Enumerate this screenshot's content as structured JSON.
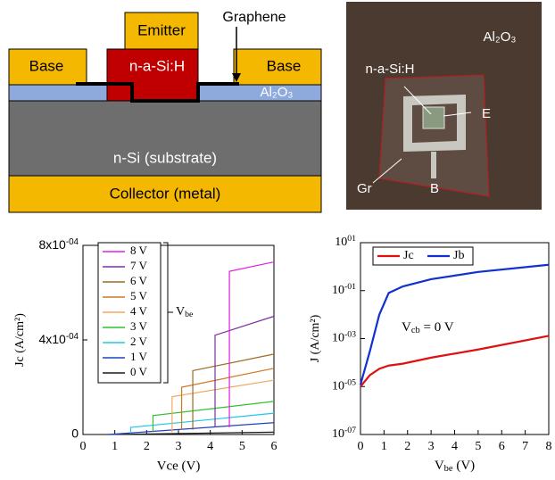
{
  "diagram": {
    "emitter": "Emitter",
    "graphene": "Graphene",
    "base_left": "Base",
    "emitter_material": "n-a-Si:H",
    "base_right": "Base",
    "oxide": "Al₂O₃",
    "substrate": "n-Si (substrate)",
    "collector": "Collector (metal)"
  },
  "photo": {
    "oxide": "Al₂O₃",
    "emitter_material": "n-a-Si:H",
    "emitter": "E",
    "graphene": "Gr",
    "base": "B"
  },
  "chart_data": [
    {
      "type": "line",
      "y_label": "Jc (A/cm²)",
      "x_label": "Vce (V)",
      "xlim": [
        0,
        6
      ],
      "xticks": [
        0,
        1,
        2,
        3,
        4,
        5,
        6
      ],
      "ylim": [
        0,
        0.0008
      ],
      "yticks": [
        0,
        {
          "value": 0.0004,
          "label": "4x10",
          "sup": "-04"
        },
        {
          "value": 0.0008,
          "label": "8x10",
          "sup": "-04"
        }
      ],
      "annotation": {
        "text": "V",
        "sub": "be"
      },
      "series": [
        {
          "name": "0 V",
          "color": "#1a1a1a",
          "x": [
            0.8,
            6
          ],
          "values": [
            0,
            1e-05
          ]
        },
        {
          "name": "1 V",
          "color": "#2040c0",
          "x": [
            0.8,
            6
          ],
          "values": [
            0,
            5e-05
          ]
        },
        {
          "name": "2 V",
          "color": "#20c8e8",
          "x": [
            1.5,
            1.5,
            6
          ],
          "values": [
            5e-06,
            3e-05,
            9e-05
          ]
        },
        {
          "name": "3 V",
          "color": "#30c030",
          "x": [
            2.2,
            2.2,
            6
          ],
          "values": [
            1e-05,
            8e-05,
            0.00014
          ]
        },
        {
          "name": "4 V",
          "color": "#f0a860",
          "x": [
            2.8,
            2.8,
            6
          ],
          "values": [
            1e-05,
            0.00016,
            0.00023
          ]
        },
        {
          "name": "5 V",
          "color": "#d07820",
          "x": [
            3.1,
            3.1,
            6
          ],
          "values": [
            2e-05,
            0.0002,
            0.00028
          ]
        },
        {
          "name": "6 V",
          "color": "#a06a20",
          "x": [
            3.45,
            3.45,
            6
          ],
          "values": [
            2e-05,
            0.00027,
            0.00034
          ]
        },
        {
          "name": "7 V",
          "color": "#7a30a0",
          "x": [
            4.15,
            4.15,
            6
          ],
          "values": [
            3e-05,
            0.00042,
            0.0005
          ]
        },
        {
          "name": "8 V",
          "color": "#e020e0",
          "x": [
            4.6,
            4.6,
            6
          ],
          "values": [
            3e-05,
            0.00069,
            0.00073
          ]
        }
      ]
    },
    {
      "type": "line",
      "log_y": true,
      "y_label": "J (A/cm²)",
      "x_label": {
        "text": "V",
        "sub": "be",
        "rest": " (V)"
      },
      "xlim": [
        0,
        8
      ],
      "xticks": [
        0,
        1,
        2,
        3,
        4,
        5,
        6,
        7,
        8
      ],
      "ylim": [
        1e-07,
        10
      ],
      "yticks": [
        {
          "value": 1e-07,
          "label": "10",
          "sup": "-07"
        },
        {
          "value": 1e-05,
          "label": "10",
          "sup": "-05"
        },
        {
          "value": 0.001,
          "label": "10",
          "sup": "-03"
        },
        {
          "value": 0.1,
          "label": "10",
          "sup": "-01"
        },
        {
          "value": 10,
          "label": "10",
          "sup": "01"
        }
      ],
      "annotation": {
        "text": "V",
        "sub": "cb",
        "rest": " = 0 V"
      },
      "x": [
        0,
        0.4,
        0.8,
        1.2,
        1.8,
        3,
        5,
        8
      ],
      "series": [
        {
          "name": "Jc",
          "color": "#e01010",
          "values": [
            1e-05,
            3e-05,
            5.5e-05,
            7.5e-05,
            9e-05,
            0.00016,
            0.00035,
            0.0013
          ]
        },
        {
          "name": "Jb",
          "color": "#1030d0",
          "values": [
            1.2e-05,
            0.0003,
            0.01,
            0.08,
            0.15,
            0.3,
            0.6,
            1.2
          ]
        }
      ]
    }
  ]
}
